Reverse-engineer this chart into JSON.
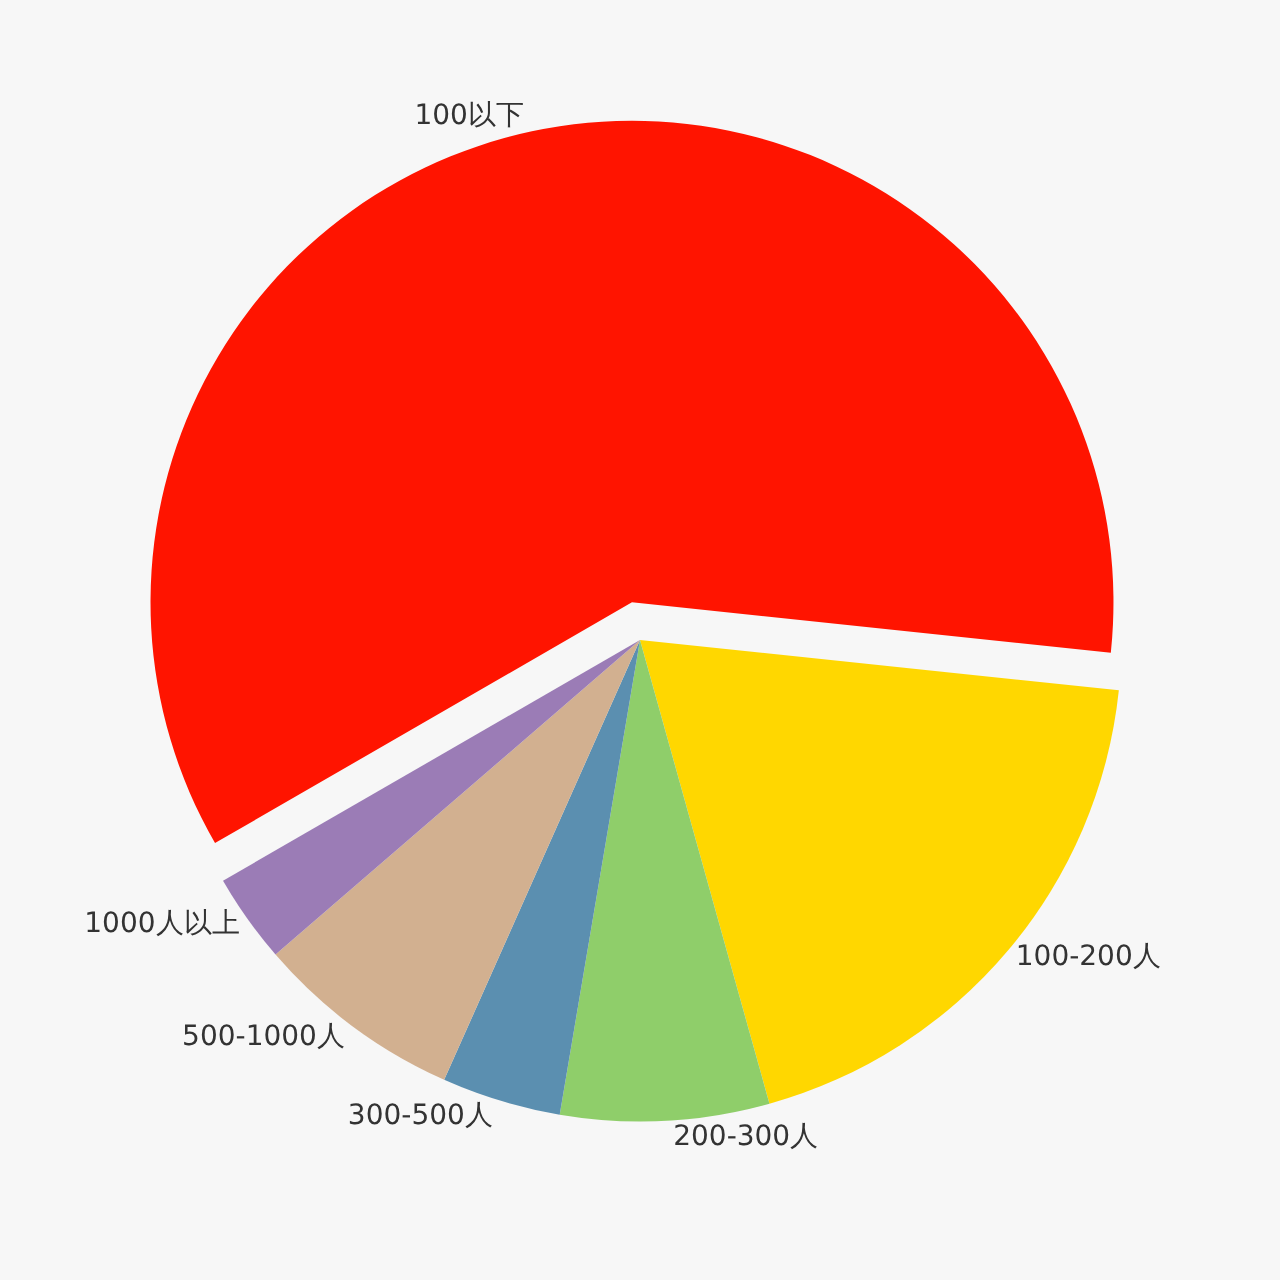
{
  "chart_data": {
    "type": "pie",
    "categories": [
      "100-200人",
      "200-300人",
      "300-500人",
      "500-1000人",
      "1000人以上",
      "100以下"
    ],
    "values": [
      19,
      7,
      4,
      7,
      3,
      60
    ],
    "colors": [
      "#ffd700",
      "#8fce6a",
      "#5b8fb0",
      "#d2b090",
      "#9b7cb6",
      "#ff1400"
    ],
    "legend": false
  }
}
